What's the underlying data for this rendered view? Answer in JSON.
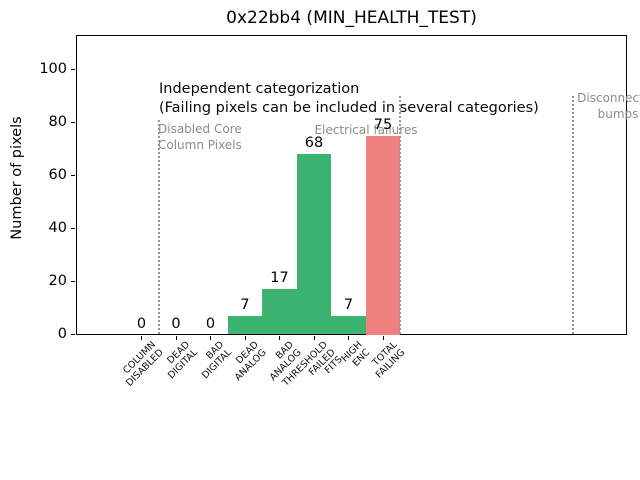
{
  "chart_data": {
    "type": "bar",
    "title": "0x22bb4 (MIN_HEALTH_TEST)",
    "ylabel": "Number of pixels",
    "xlabel": "",
    "categories": [
      "COLUMN\nDISABLED",
      "DEAD\nDIGITAL",
      "BAD\nDIGITAL",
      "DEAD\nANALOG",
      "BAD\nANALOG",
      "THRESHOLD\nFAILED\nFITS",
      "HIGH\nENC",
      "TOTAL\nFAILING"
    ],
    "values": [
      0,
      0,
      0,
      7,
      17,
      68,
      7,
      75
    ],
    "bar_value_labels": [
      "0",
      "0",
      "0",
      "7",
      "17",
      "68",
      "7",
      "75"
    ],
    "bar_colors": [
      "#3cb371",
      "#3cb371",
      "#3cb371",
      "#3cb371",
      "#3cb371",
      "#3cb371",
      "#3cb371",
      "#f08080"
    ],
    "series_colors": {
      "electrical_failures": "#3cb371",
      "total_failing": "#f08080"
    },
    "yticks": [
      0,
      20,
      40,
      60,
      80,
      100
    ],
    "ylim": [
      0,
      113
    ],
    "xlim_category_units": [
      -1.9,
      14.1
    ],
    "grid": false,
    "legend": null,
    "annotations": [
      {
        "id": "independent",
        "text": "Independent categorization",
        "color": "#0a0a0a"
      },
      {
        "id": "failing-note",
        "text": "(Failing pixels can be included in several categories)",
        "color": "#0a0a0a"
      },
      {
        "id": "disabled-core",
        "text": "Disabled Core\nColumn Pixels",
        "color": "#8c8c8c"
      },
      {
        "id": "electrical",
        "text": "Electrical failures",
        "color": "#8c8c8c"
      },
      {
        "id": "disconnected",
        "text": "Disconnected\nbumps",
        "color": "#8c8c8c"
      }
    ],
    "separators": {
      "style": "dotted",
      "color": "#969696",
      "index_positions": [
        0.5,
        7.5,
        12.5
      ]
    }
  }
}
